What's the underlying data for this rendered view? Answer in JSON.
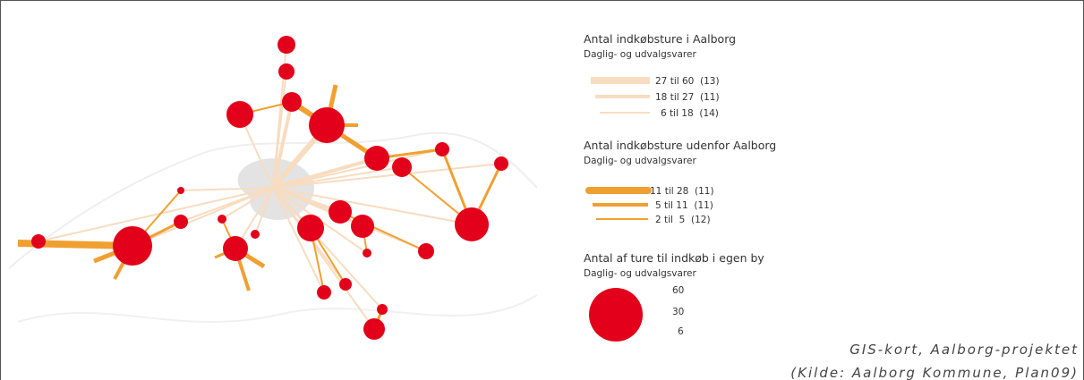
{
  "legend": {
    "inside": {
      "title": "Antal indkøbsture i Aalborg",
      "subtitle": "Daglig- og udvalgsvarer",
      "items": [
        "27 til 60  (13)",
        "18 til 27  (11)",
        "6 til 18  (14)"
      ]
    },
    "outside": {
      "title": "Antal indkøbsture udenfor Aalborg",
      "subtitle": "Daglig- og udvalgsvarer",
      "items": [
        "11 til 28  (11)",
        "5 til 11  (11)",
        "2 til  5  (12)"
      ]
    },
    "own": {
      "title": "Antal af ture til indkøb i egen by",
      "subtitle": "Daglig- og udvalgsvarer",
      "items": [
        "60",
        "30",
        "6"
      ]
    }
  },
  "caption": {
    "line1": "GIS-kort, Aalborg-projektet",
    "line2": "(Kilde: Aalborg Kommune, Plan09)"
  }
}
